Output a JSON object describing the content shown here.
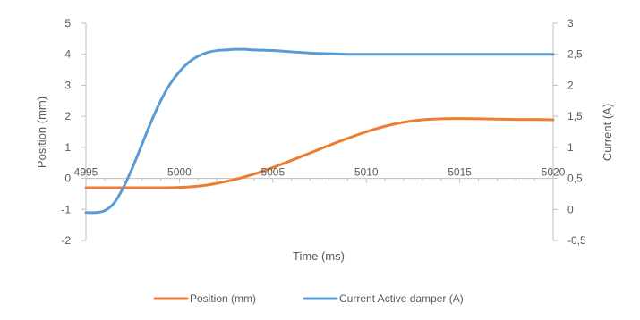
{
  "chart_data": {
    "type": "line",
    "title": "",
    "xlabel": "Time (ms)",
    "ylabel_left": "Position (mm)",
    "ylabel_right": "Current (A)",
    "xlim": [
      4995,
      5020
    ],
    "ylim_left": [
      -2,
      5
    ],
    "ylim_right": [
      -0.5,
      3
    ],
    "x_ticks": [
      4995,
      5000,
      5005,
      5010,
      5015,
      5020
    ],
    "x_tick_labels": [
      "4995",
      "5000",
      "5005",
      "5010",
      "5015",
      "5020"
    ],
    "y_left_ticks": [
      -2,
      -1,
      0,
      1,
      2,
      3,
      4,
      5
    ],
    "y_left_tick_labels": [
      "-2",
      "-1",
      "0",
      "1",
      "2",
      "3",
      "4",
      "5"
    ],
    "y_right_ticks": [
      -0.5,
      0,
      0.5,
      1,
      1.5,
      2,
      2.5,
      3
    ],
    "y_right_tick_labels": [
      "-0,5",
      "0",
      "0,5",
      "1",
      "1,5",
      "2",
      "2,5",
      "3"
    ],
    "grid": false,
    "legend_position": "bottom",
    "series": [
      {
        "name": "Position (mm)",
        "axis": "left",
        "color": "#ED7D31",
        "x": [
          4995,
          4996,
          4997,
          4998,
          4999,
          5000,
          5001,
          5002,
          5003,
          5004,
          5005,
          5006,
          5007,
          5008,
          5009,
          5010,
          5011,
          5012,
          5013,
          5014,
          5015,
          5016,
          5017,
          5018,
          5019,
          5020
        ],
        "values": [
          -0.3,
          -0.3,
          -0.3,
          -0.3,
          -0.3,
          -0.29,
          -0.25,
          -0.16,
          -0.03,
          0.14,
          0.35,
          0.58,
          0.82,
          1.06,
          1.29,
          1.5,
          1.68,
          1.81,
          1.89,
          1.92,
          1.93,
          1.92,
          1.91,
          1.9,
          1.9,
          1.89
        ]
      },
      {
        "name": "Current Active damper (A)",
        "axis": "right",
        "color": "#5B9BD5",
        "x": [
          4995,
          4995.5,
          4996,
          4996.5,
          4997,
          4997.5,
          4998,
          4998.5,
          4999,
          4999.5,
          5000,
          5000.5,
          5001,
          5001.5,
          5002,
          5002.5,
          5003,
          5003.5,
          5004,
          5005,
          5006,
          5007,
          5008,
          5009,
          5010,
          5011,
          5012,
          5013,
          5014,
          5015,
          5016,
          5017,
          5018,
          5019,
          5020
        ],
        "values": [
          -0.05,
          -0.05,
          -0.02,
          0.1,
          0.35,
          0.68,
          1.05,
          1.42,
          1.75,
          2.02,
          2.22,
          2.37,
          2.47,
          2.53,
          2.56,
          2.57,
          2.58,
          2.58,
          2.57,
          2.56,
          2.54,
          2.52,
          2.51,
          2.5,
          2.5,
          2.5,
          2.5,
          2.5,
          2.5,
          2.5,
          2.5,
          2.5,
          2.5,
          2.5,
          2.5
        ]
      }
    ]
  }
}
